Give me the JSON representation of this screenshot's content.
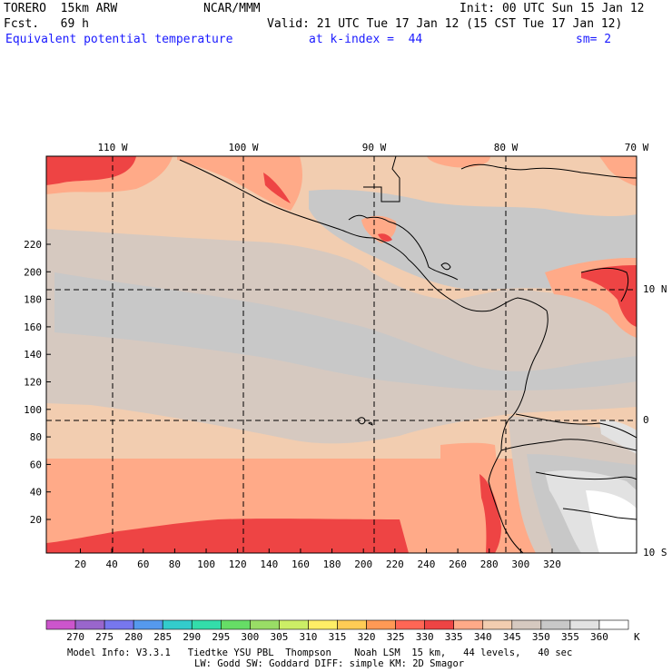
{
  "header": {
    "model": "TORERO  15km ARW",
    "org": "NCAR/MMM",
    "init": "Init: 00 UTC Sun 15 Jan 12",
    "fcst": "Fcst.   69 h",
    "valid": "Valid: 21 UTC Tue 17 Jan 12 (15 CST Tue 17 Jan 12)",
    "field": "Equivalent potential temperature",
    "level": "at k-index =  44",
    "smooth": "sm= 2"
  },
  "map": {
    "lon_labels": [
      "110 W",
      "100 W",
      "90 W",
      "80 W",
      "70 W"
    ],
    "lat_labels": [
      "10 N",
      "0",
      "10 S"
    ],
    "y_ticks": [
      "20",
      "40",
      "60",
      "80",
      "100",
      "120",
      "140",
      "160",
      "180",
      "200",
      "220"
    ],
    "x_ticks": [
      "20",
      "40",
      "60",
      "80",
      "100",
      "120",
      "140",
      "160",
      "180",
      "200",
      "220",
      "240",
      "260",
      "280",
      "300",
      "320"
    ]
  },
  "colorbar": {
    "levels": [
      "270",
      "275",
      "280",
      "285",
      "290",
      "295",
      "300",
      "305",
      "310",
      "315",
      "320",
      "325",
      "330",
      "335",
      "340",
      "345",
      "350",
      "355",
      "360"
    ],
    "unit": "K",
    "colors": [
      "#cc55cc",
      "#9966cc",
      "#7777ee",
      "#5599ee",
      "#33cccc",
      "#33ddaa",
      "#66dd66",
      "#99dd66",
      "#ccee66",
      "#ffee66",
      "#ffcc55",
      "#ff9955",
      "#ff6655",
      "#ee4444",
      "#ffaa88",
      "#f2cdb0",
      "#d6c9c0",
      "#c8c8c8",
      "#e2e2e2",
      "#ffffff"
    ]
  },
  "footer": {
    "line1": "Model Info: V3.3.1   Tiedtke YSU PBL  Thompson    Noah LSM  15 km,   44 levels,   40 sec",
    "line2": "LW: Godd SW: Goddard DIFF: simple KM: 2D Smagor"
  }
}
